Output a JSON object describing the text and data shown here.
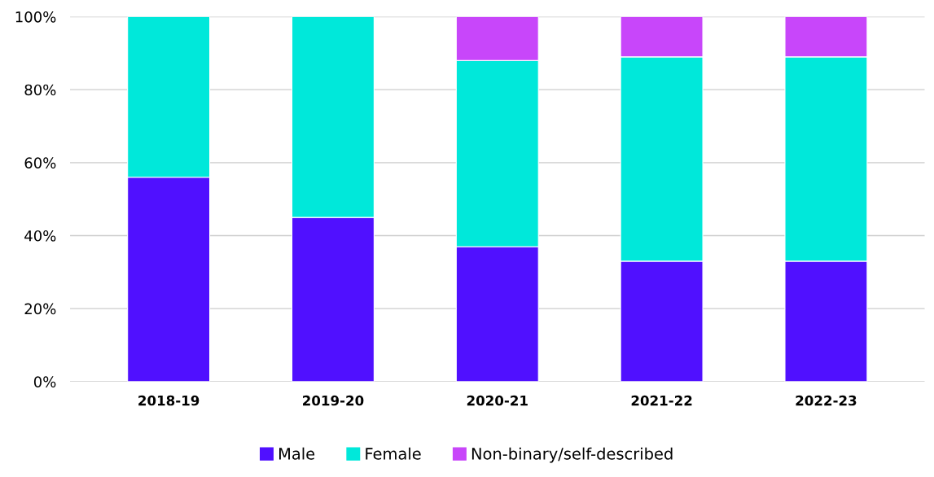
{
  "chart_data": {
    "type": "bar",
    "stacked": true,
    "categories": [
      "2018-19",
      "2019-20",
      "2020-21",
      "2021-22",
      "2022-23"
    ],
    "series": [
      {
        "name": "Male",
        "color": "#5010ff",
        "values": [
          56,
          45,
          37,
          33,
          33
        ]
      },
      {
        "name": "Female",
        "color": "#00e8da",
        "values": [
          44,
          55,
          51,
          56,
          56
        ]
      },
      {
        "name": "Non-binary/self-described",
        "color": "#c846fa",
        "values": [
          null,
          null,
          12,
          11,
          11
        ]
      }
    ],
    "ylim": [
      0,
      100
    ],
    "yticks": [
      {
        "value": 0,
        "label": "0%"
      },
      {
        "value": 20,
        "label": "20%"
      },
      {
        "value": 40,
        "label": "40%"
      },
      {
        "value": 60,
        "label": "60%"
      },
      {
        "value": 80,
        "label": "80%"
      },
      {
        "value": 100,
        "label": "100%"
      }
    ],
    "grid": "y",
    "legend": "bottom"
  }
}
